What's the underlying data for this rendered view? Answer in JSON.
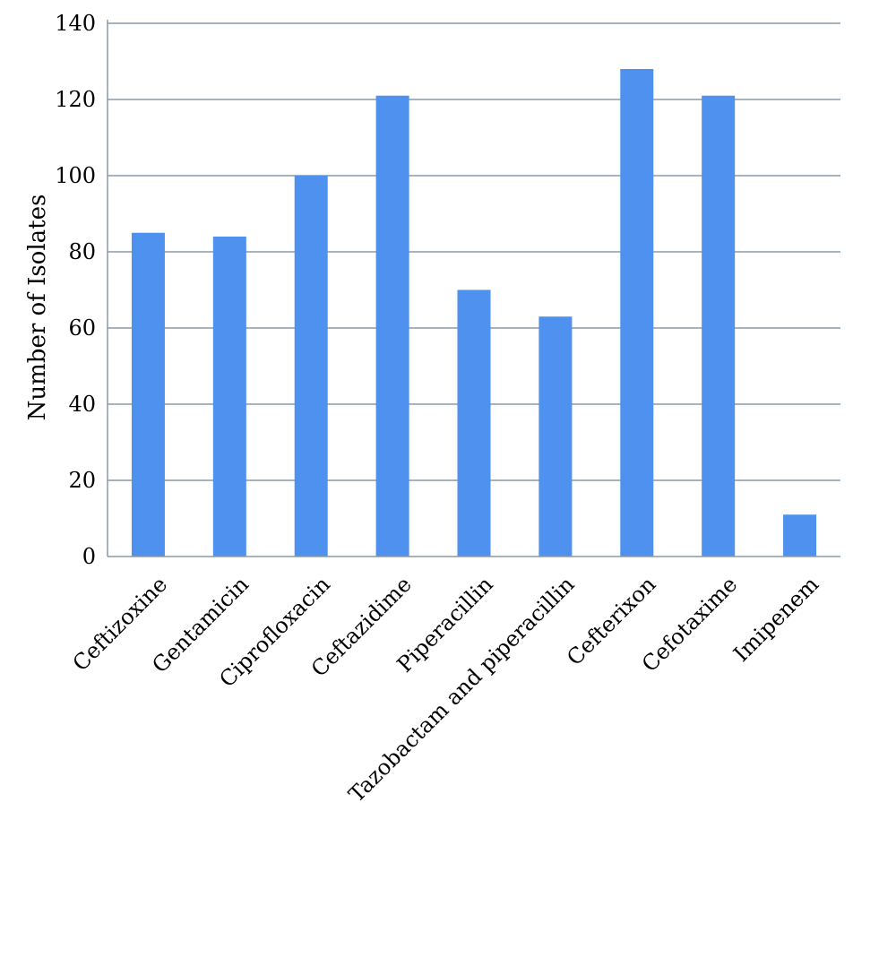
{
  "chart_data": {
    "type": "bar",
    "title": "",
    "xlabel": "",
    "ylabel": "Number of Isolates",
    "ylim": [
      0,
      140
    ],
    "yticks": [
      0,
      20,
      40,
      60,
      80,
      100,
      120,
      140
    ],
    "grid": true,
    "legend": "none",
    "categories": [
      "Ceftizoxine",
      "Gentamicin",
      "Ciprofloxacin",
      "Ceftazidime",
      "Piperacillin",
      "Tazobactam and piperacillin",
      "Cefterixon",
      "Cefotaxime",
      "Imipenem"
    ],
    "values": [
      85,
      84,
      100,
      121,
      70,
      63,
      128,
      121,
      11
    ],
    "bar_color": "#4f91ef",
    "grid_color": "#8a9aa8"
  }
}
